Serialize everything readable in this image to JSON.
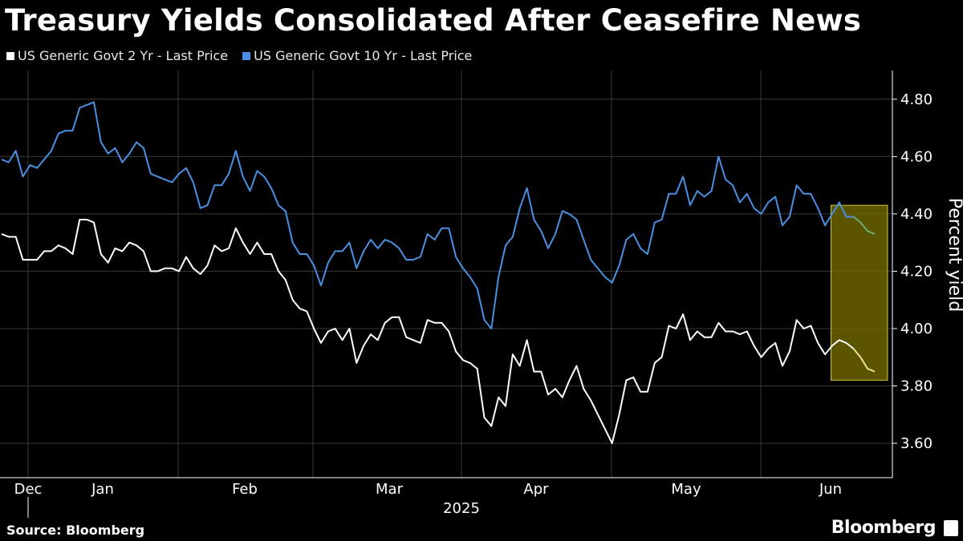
{
  "header": {
    "title": "Treasury Yields Consolidated After Ceasefire News"
  },
  "footer": {
    "source": "Source: Bloomberg",
    "brand": "Bloomberg"
  },
  "colors": {
    "background": "#000000",
    "gridline": "#3a3a3a",
    "two_year": "#ffffff",
    "ten_year": "#4a90e2",
    "highlight_fill": "#6b6400",
    "highlight_stroke": "#d9c934",
    "highlight_line_2y": "#e8e39a",
    "highlight_line_10y": "#6fa87a"
  },
  "chart_data": {
    "type": "line",
    "title": "Treasury Yields Consolidated After Ceasefire News",
    "ylabel": "Percent yield",
    "ylim": [
      3.48,
      4.9
    ],
    "yticks": [
      "3.60",
      "3.80",
      "4.00",
      "4.20",
      "4.40",
      "4.60",
      "4.80"
    ],
    "x_month_labels": [
      "Dec",
      "Jan",
      "Feb",
      "Mar",
      "Apr",
      "May",
      "Jun"
    ],
    "x_year_label": "2025",
    "grid": "vertical and horizontal",
    "legend": "top-left",
    "highlight": {
      "label": "",
      "start_index": 120
    },
    "series": [
      {
        "name": "US Generic Govt 2 Yr - Last Price",
        "values": [
          4.33,
          4.32,
          4.32,
          4.24,
          4.24,
          4.24,
          4.27,
          4.27,
          4.29,
          4.28,
          4.26,
          4.38,
          4.38,
          4.37,
          4.26,
          4.23,
          4.28,
          4.27,
          4.3,
          4.29,
          4.27,
          4.2,
          4.2,
          4.21,
          4.21,
          4.2,
          4.25,
          4.21,
          4.19,
          4.22,
          4.29,
          4.27,
          4.28,
          4.35,
          4.3,
          4.26,
          4.3,
          4.26,
          4.26,
          4.2,
          4.17,
          4.1,
          4.07,
          4.06,
          4.0,
          3.95,
          3.99,
          4.0,
          3.96,
          4.0,
          3.88,
          3.94,
          3.98,
          3.96,
          4.02,
          4.04,
          4.04,
          3.97,
          3.96,
          3.95,
          4.03,
          4.02,
          4.02,
          3.99,
          3.92,
          3.89,
          3.88,
          3.86,
          3.69,
          3.66,
          3.76,
          3.73,
          3.91,
          3.87,
          3.96,
          3.85,
          3.85,
          3.77,
          3.79,
          3.76,
          3.82,
          3.87,
          3.79,
          3.75,
          3.7,
          3.65,
          3.6,
          3.7,
          3.82,
          3.83,
          3.78,
          3.78,
          3.88,
          3.9,
          4.01,
          4.0,
          4.05,
          3.96,
          3.99,
          3.97,
          3.97,
          4.02,
          3.99,
          3.99,
          3.98,
          3.99,
          3.94,
          3.9,
          3.93,
          3.95,
          3.87,
          3.92,
          4.03,
          4.0,
          4.01,
          3.95,
          3.91,
          3.94,
          3.96,
          3.95,
          3.93,
          3.9,
          3.86,
          3.85
        ]
      },
      {
        "name": "US Generic Govt 10 Yr - Last Price",
        "values": [
          4.59,
          4.58,
          4.62,
          4.53,
          4.57,
          4.56,
          4.59,
          4.62,
          4.68,
          4.69,
          4.69,
          4.77,
          4.78,
          4.79,
          4.65,
          4.61,
          4.63,
          4.58,
          4.61,
          4.65,
          4.63,
          4.54,
          4.53,
          4.52,
          4.51,
          4.54,
          4.56,
          4.51,
          4.42,
          4.43,
          4.5,
          4.5,
          4.54,
          4.62,
          4.53,
          4.48,
          4.55,
          4.53,
          4.49,
          4.43,
          4.41,
          4.3,
          4.26,
          4.26,
          4.22,
          4.15,
          4.23,
          4.27,
          4.27,
          4.3,
          4.21,
          4.27,
          4.31,
          4.28,
          4.31,
          4.3,
          4.28,
          4.24,
          4.24,
          4.25,
          4.33,
          4.31,
          4.35,
          4.35,
          4.25,
          4.21,
          4.18,
          4.14,
          4.03,
          4.0,
          4.18,
          4.29,
          4.32,
          4.42,
          4.49,
          4.38,
          4.34,
          4.28,
          4.33,
          4.41,
          4.4,
          4.38,
          4.31,
          4.24,
          4.21,
          4.18,
          4.16,
          4.22,
          4.31,
          4.33,
          4.28,
          4.26,
          4.37,
          4.38,
          4.47,
          4.47,
          4.53,
          4.43,
          4.48,
          4.46,
          4.48,
          4.6,
          4.52,
          4.5,
          4.44,
          4.47,
          4.42,
          4.4,
          4.44,
          4.46,
          4.36,
          4.39,
          4.5,
          4.47,
          4.47,
          4.42,
          4.36,
          4.4,
          4.44,
          4.39,
          4.39,
          4.37,
          4.34,
          4.33
        ]
      }
    ]
  }
}
